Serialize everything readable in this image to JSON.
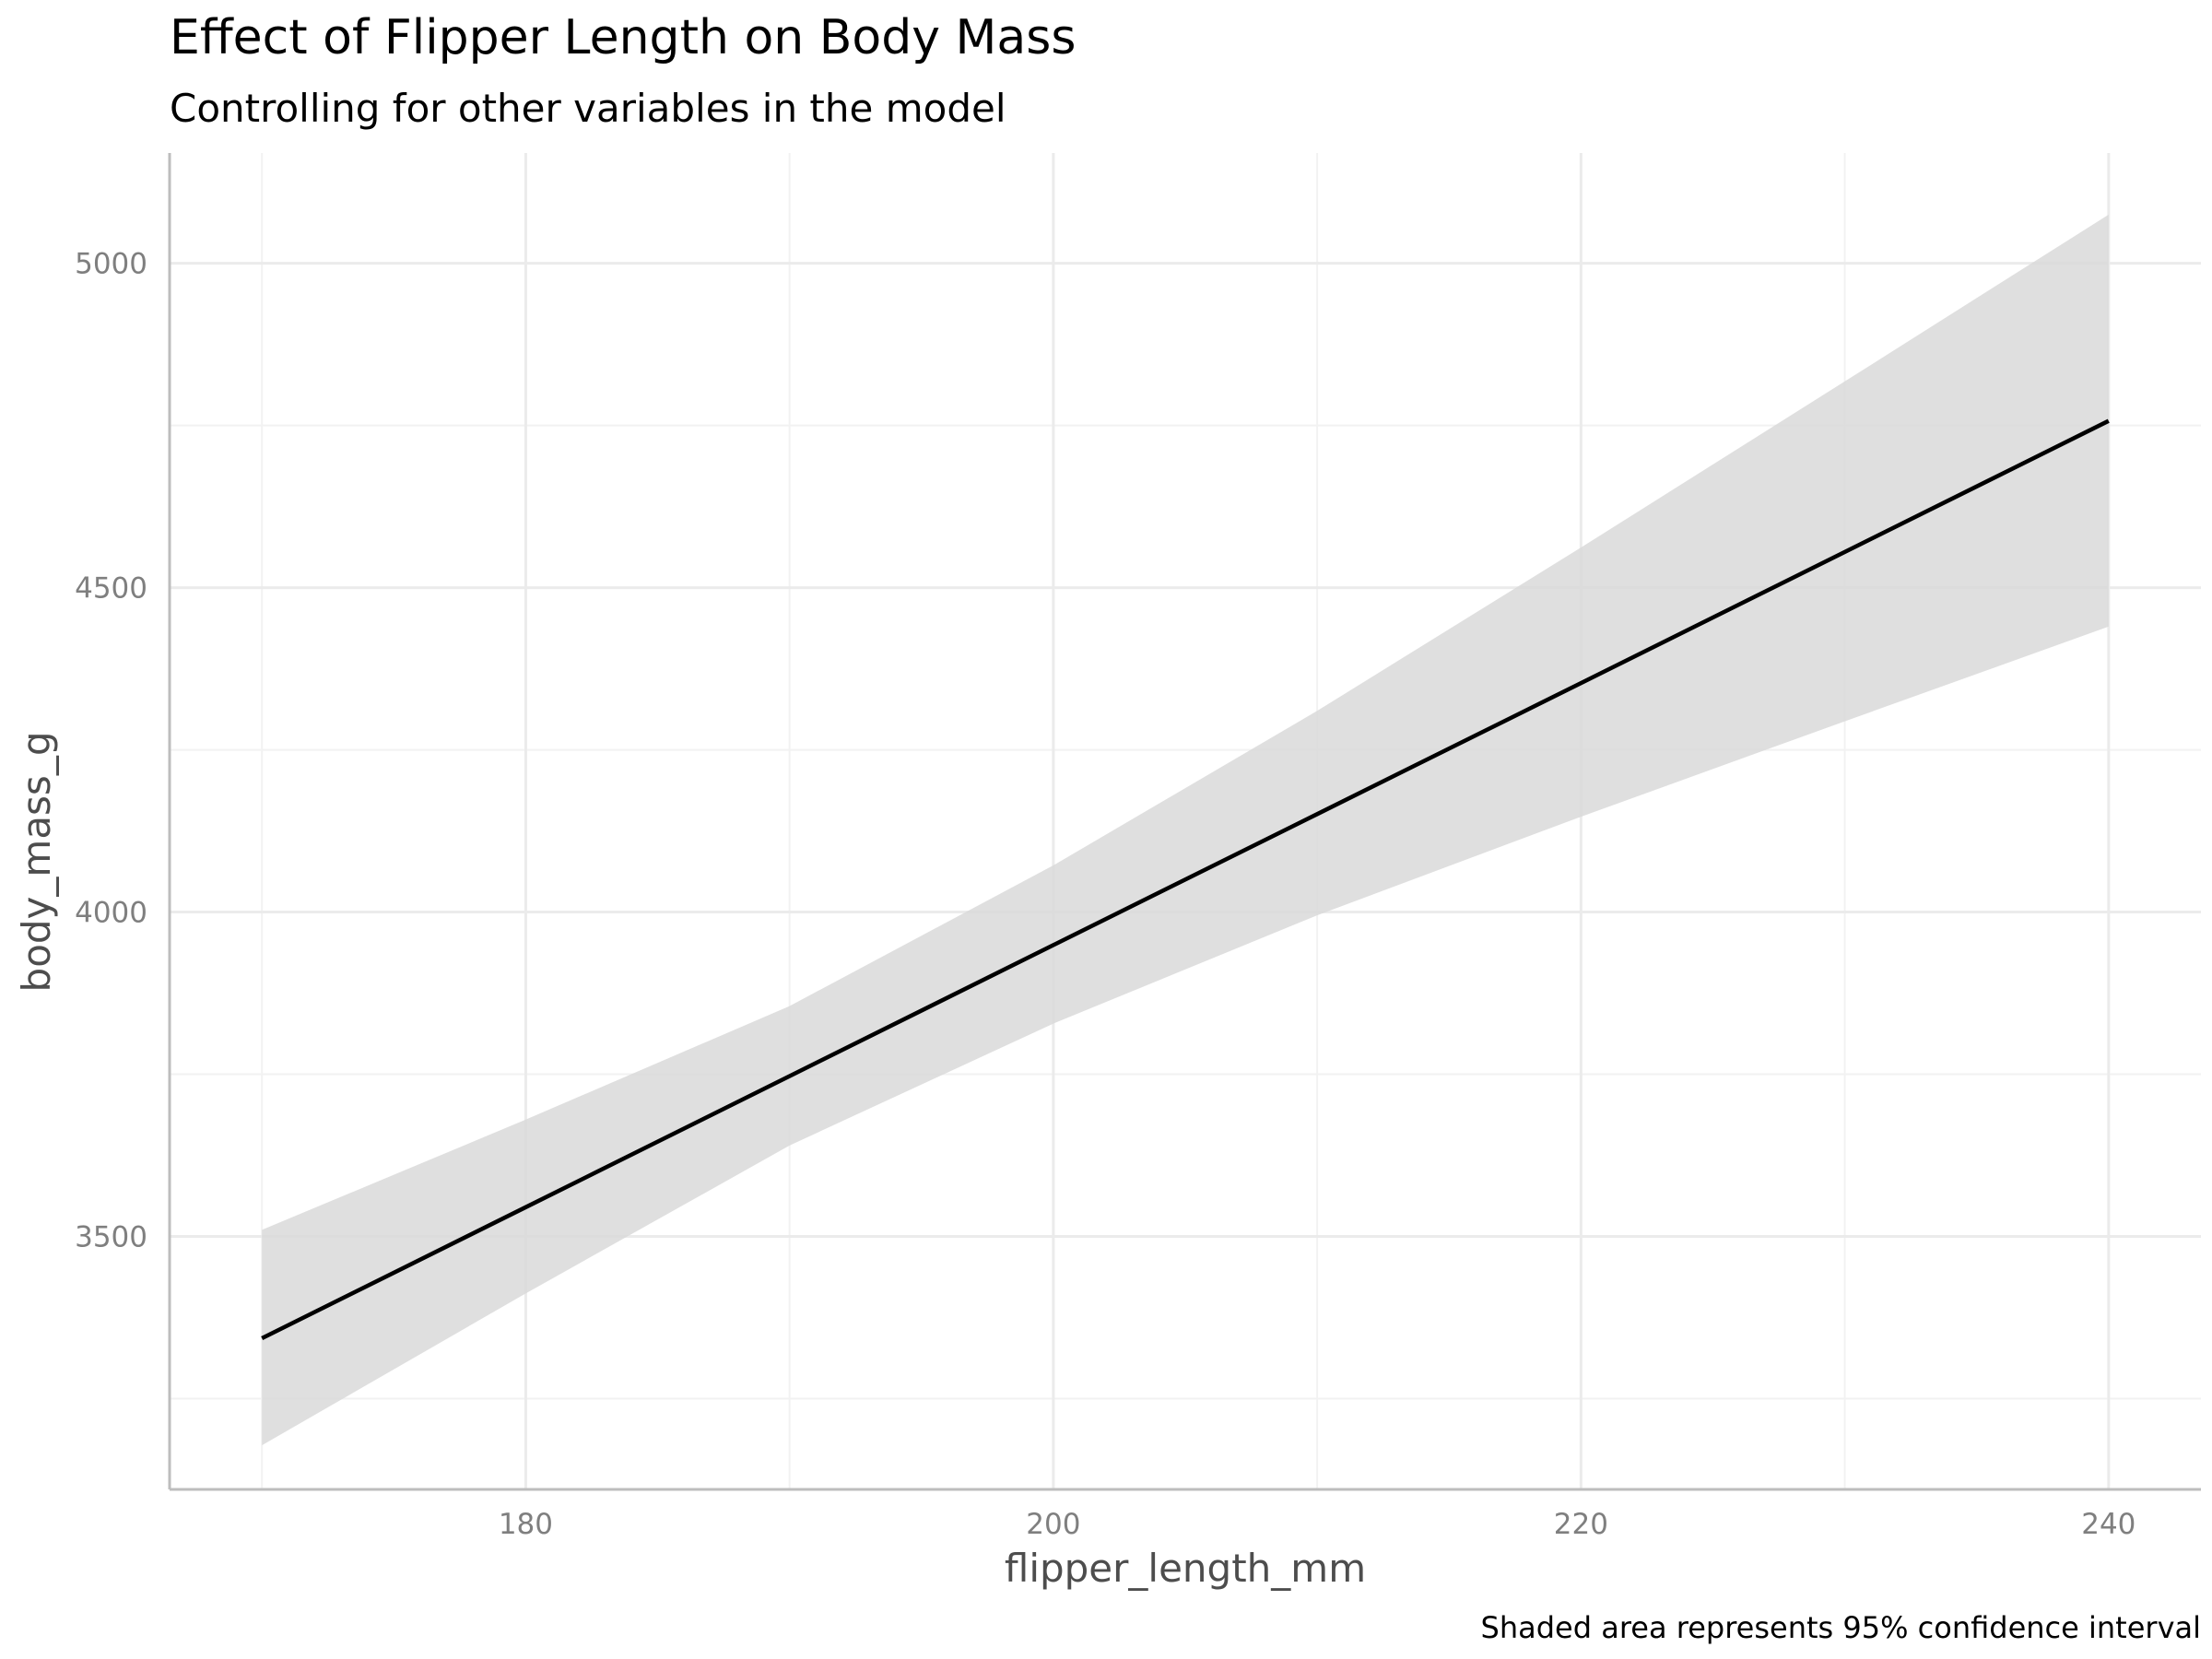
{
  "chart_data": {
    "type": "line",
    "title": "Effect of Flipper Length on Body Mass",
    "subtitle": "Controlling for other variables in the model",
    "xlabel": "flipper_length_mm",
    "ylabel": "body_mass_g",
    "caption": "Shaded area represents 95% confidence interval",
    "xlim": [
      166.5,
      243.5
    ],
    "ylim": [
      3110,
      5170
    ],
    "x_ticks": [
      180,
      200,
      220,
      240
    ],
    "y_ticks": [
      3500,
      4000,
      4500,
      5000
    ],
    "x_minor": [
      170,
      190,
      210,
      230
    ],
    "y_minor": [
      3250,
      3750,
      4250,
      4750
    ],
    "grid": true,
    "legend": "none",
    "series": [
      {
        "x": [
          170,
          180,
          190,
          200,
          210,
          220,
          230,
          240
        ],
        "y": [
          3343,
          3545,
          3747,
          3949,
          4151,
          4353,
          4555,
          4757
        ],
        "lower": [
          3178,
          3412,
          3640,
          3828,
          3995,
          4147,
          4294,
          4440
        ],
        "upper": [
          3510,
          3680,
          3855,
          4072,
          4310,
          4562,
          4818,
          5075
        ]
      }
    ],
    "colors": {
      "line": "#000000",
      "band": "#d9d9d9",
      "grid_major": "#ebebeb",
      "grid_minor": "#f2f2f2",
      "axis": "#bdbdbd"
    }
  }
}
